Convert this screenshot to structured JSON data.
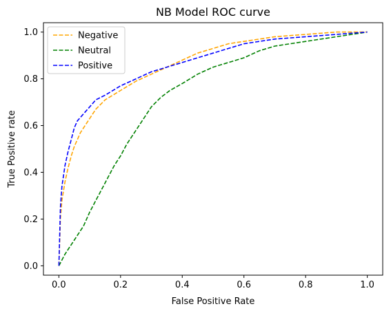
{
  "chart_data": {
    "type": "line",
    "title": "NB Model ROC curve",
    "xlabel": "False Positive Rate",
    "ylabel": "True Positive rate",
    "xlim": [
      -0.05,
      1.05
    ],
    "ylim": [
      -0.04,
      1.04
    ],
    "xticks": [
      0.0,
      0.2,
      0.4,
      0.6,
      0.8,
      1.0
    ],
    "xtick_labels": [
      "0.0",
      "0.2",
      "0.4",
      "0.6",
      "0.8",
      "1.0"
    ],
    "yticks": [
      0.0,
      0.2,
      0.4,
      0.6,
      0.8,
      1.0
    ],
    "ytick_labels": [
      "0.0",
      "0.2",
      "0.4",
      "0.6",
      "0.8",
      "1.0"
    ],
    "grid": false,
    "legend_position": "top-left",
    "line_style": "dashed",
    "series": [
      {
        "name": "Negative",
        "color": "#ffa500",
        "x": [
          0.0,
          0.005,
          0.01,
          0.02,
          0.03,
          0.04,
          0.05,
          0.07,
          0.09,
          0.12,
          0.15,
          0.2,
          0.25,
          0.3,
          0.35,
          0.4,
          0.45,
          0.5,
          0.55,
          0.6,
          0.7,
          0.8,
          0.9,
          1.0
        ],
        "y": [
          0.0,
          0.2,
          0.28,
          0.36,
          0.42,
          0.47,
          0.51,
          0.57,
          0.61,
          0.67,
          0.71,
          0.75,
          0.79,
          0.82,
          0.85,
          0.88,
          0.91,
          0.93,
          0.95,
          0.96,
          0.98,
          0.99,
          1.0,
          1.0
        ]
      },
      {
        "name": "Neutral",
        "color": "#008000",
        "x": [
          0.0,
          0.02,
          0.05,
          0.08,
          0.1,
          0.12,
          0.14,
          0.16,
          0.18,
          0.2,
          0.22,
          0.25,
          0.28,
          0.3,
          0.33,
          0.36,
          0.4,
          0.45,
          0.5,
          0.55,
          0.6,
          0.65,
          0.7,
          0.75,
          0.8,
          0.85,
          0.9,
          0.95,
          1.0
        ],
        "y": [
          0.0,
          0.05,
          0.11,
          0.17,
          0.23,
          0.28,
          0.33,
          0.38,
          0.43,
          0.47,
          0.52,
          0.58,
          0.64,
          0.68,
          0.72,
          0.75,
          0.78,
          0.82,
          0.85,
          0.87,
          0.89,
          0.92,
          0.94,
          0.95,
          0.96,
          0.97,
          0.98,
          0.99,
          1.0
        ]
      },
      {
        "name": "Positive",
        "color": "#0000ff",
        "x": [
          0.0,
          0.005,
          0.01,
          0.02,
          0.03,
          0.04,
          0.05,
          0.06,
          0.08,
          0.1,
          0.12,
          0.15,
          0.2,
          0.25,
          0.3,
          0.35,
          0.4,
          0.45,
          0.5,
          0.55,
          0.6,
          0.7,
          0.8,
          0.9,
          1.0
        ],
        "y": [
          0.0,
          0.25,
          0.34,
          0.43,
          0.49,
          0.54,
          0.59,
          0.62,
          0.65,
          0.68,
          0.71,
          0.73,
          0.77,
          0.8,
          0.83,
          0.85,
          0.87,
          0.89,
          0.91,
          0.93,
          0.95,
          0.97,
          0.98,
          0.99,
          1.0
        ]
      }
    ]
  }
}
